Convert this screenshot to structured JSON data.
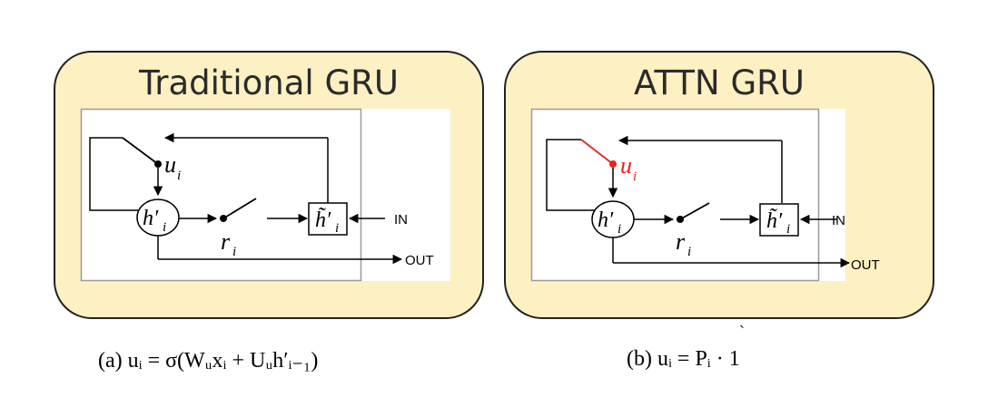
{
  "panels": [
    {
      "title": "Traditional GRU",
      "labels": {
        "update_gate": "u",
        "update_sub": "i",
        "hidden": "h′",
        "hidden_sub": "i",
        "reset_gate": "r",
        "reset_sub": "i",
        "candidate": "h̃′",
        "candidate_sub": "i",
        "input": "IN",
        "output": "OUT"
      },
      "gate_color": "#000000"
    },
    {
      "title": "ATTN GRU",
      "labels": {
        "update_gate": "u",
        "update_sub": "i",
        "hidden": "h′",
        "hidden_sub": "i",
        "reset_gate": "r",
        "reset_sub": "i",
        "candidate": "h̃′",
        "candidate_sub": "i",
        "input": "IN",
        "output": "OUT"
      },
      "gate_color": "#e8231f"
    }
  ],
  "captions": {
    "a": "(a) uᵢ = σ(Wᵤxᵢ + Uᵤh′ᵢ₋₁)",
    "b": "(b) uᵢ = Pᵢ · 1"
  },
  "stray_mark": "`"
}
